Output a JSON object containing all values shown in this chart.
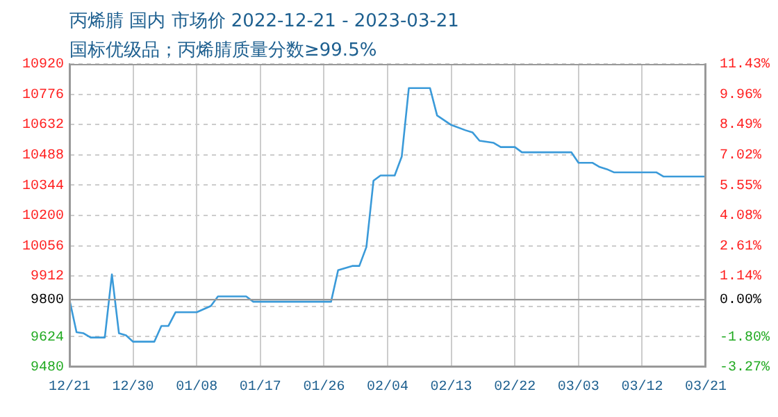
{
  "chart_data": {
    "type": "line",
    "title": "丙烯腈 国内 市场价 2022-12-21 - 2023-03-21",
    "subtitle": "国标优级品；丙烯腈质量分数≥99.5%",
    "x": [
      "2022-12-21",
      "2022-12-22",
      "2022-12-23",
      "2022-12-24",
      "2022-12-26",
      "2022-12-27",
      "2022-12-28",
      "2022-12-29",
      "2022-12-30",
      "2023-01-02",
      "2023-01-03",
      "2023-01-04",
      "2023-01-05",
      "2023-01-08",
      "2023-01-10",
      "2023-01-11",
      "2023-01-15",
      "2023-01-16",
      "2023-01-27",
      "2023-01-28",
      "2023-01-30",
      "2023-01-31",
      "2023-02-01",
      "2023-02-02",
      "2023-02-03",
      "2023-02-05",
      "2023-02-06",
      "2023-02-07",
      "2023-02-10",
      "2023-02-11",
      "2023-02-13",
      "2023-02-15",
      "2023-02-16",
      "2023-02-17",
      "2023-02-19",
      "2023-02-20",
      "2023-02-22",
      "2023-02-23",
      "2023-03-02",
      "2023-03-03",
      "2023-03-05",
      "2023-03-06",
      "2023-03-07",
      "2023-03-08",
      "2023-03-14",
      "2023-03-15",
      "2023-03-21"
    ],
    "series": [
      {
        "color": "#3a9ad9",
        "values": [
          9800,
          9645,
          9640,
          9620,
          9620,
          9920,
          9640,
          9630,
          9600,
          9600,
          9675,
          9675,
          9740,
          9740,
          9770,
          9815,
          9815,
          9790,
          9790,
          9940,
          9960,
          9960,
          10050,
          10365,
          10390,
          10390,
          10480,
          10805,
          10805,
          10675,
          10630,
          10605,
          10595,
          10555,
          10545,
          10525,
          10525,
          10500,
          10500,
          10450,
          10450,
          10430,
          10420,
          10405,
          10405,
          10385,
          10385
        ]
      }
    ],
    "xlim": [
      "2022-12-21",
      "2023-03-21"
    ],
    "xticks": [
      {
        "value": "2022-12-21",
        "label": "12/21"
      },
      {
        "value": "2022-12-30",
        "label": "12/30"
      },
      {
        "value": "2023-01-08",
        "label": "01/08"
      },
      {
        "value": "2023-01-17",
        "label": "01/17"
      },
      {
        "value": "2023-01-26",
        "label": "01/26"
      },
      {
        "value": "2023-02-04",
        "label": "02/04"
      },
      {
        "value": "2023-02-13",
        "label": "02/13"
      },
      {
        "value": "2023-02-22",
        "label": "02/22"
      },
      {
        "value": "2023-03-03",
        "label": "03/03"
      },
      {
        "value": "2023-03-12",
        "label": "03/12"
      },
      {
        "value": "2023-03-21",
        "label": "03/21"
      }
    ],
    "ylim": [
      9480,
      10920
    ],
    "yticks": [
      9480,
      9624,
      {
        "value": 9768,
        "label": null
      },
      9800,
      9912,
      10056,
      10200,
      10344,
      10488,
      10632,
      10776,
      10920
    ],
    "y2lim": [
      -3.27,
      11.43
    ],
    "y2ticks": [
      {
        "value": -3.27,
        "label": "-3.27%"
      },
      {
        "value": -1.8,
        "label": "-1.80%"
      },
      {
        "value": 0,
        "label": "0.00%"
      },
      {
        "value": 1.14,
        "label": "1.14%"
      },
      {
        "value": 2.61,
        "label": "2.61%"
      },
      {
        "value": 4.08,
        "label": "4.08%"
      },
      {
        "value": 5.55,
        "label": "5.55%"
      },
      {
        "value": 7.02,
        "label": "7.02%"
      },
      {
        "value": 8.49,
        "label": "8.49%"
      },
      {
        "value": 9.96,
        "label": "9.96%"
      },
      {
        "value": 11.43,
        "label": "11.43%"
      }
    ],
    "ref_lines": [
      {
        "axis": "y",
        "value": 9800,
        "color": "#999999"
      }
    ],
    "grid": true,
    "marker": "none",
    "line_style": "solid"
  }
}
